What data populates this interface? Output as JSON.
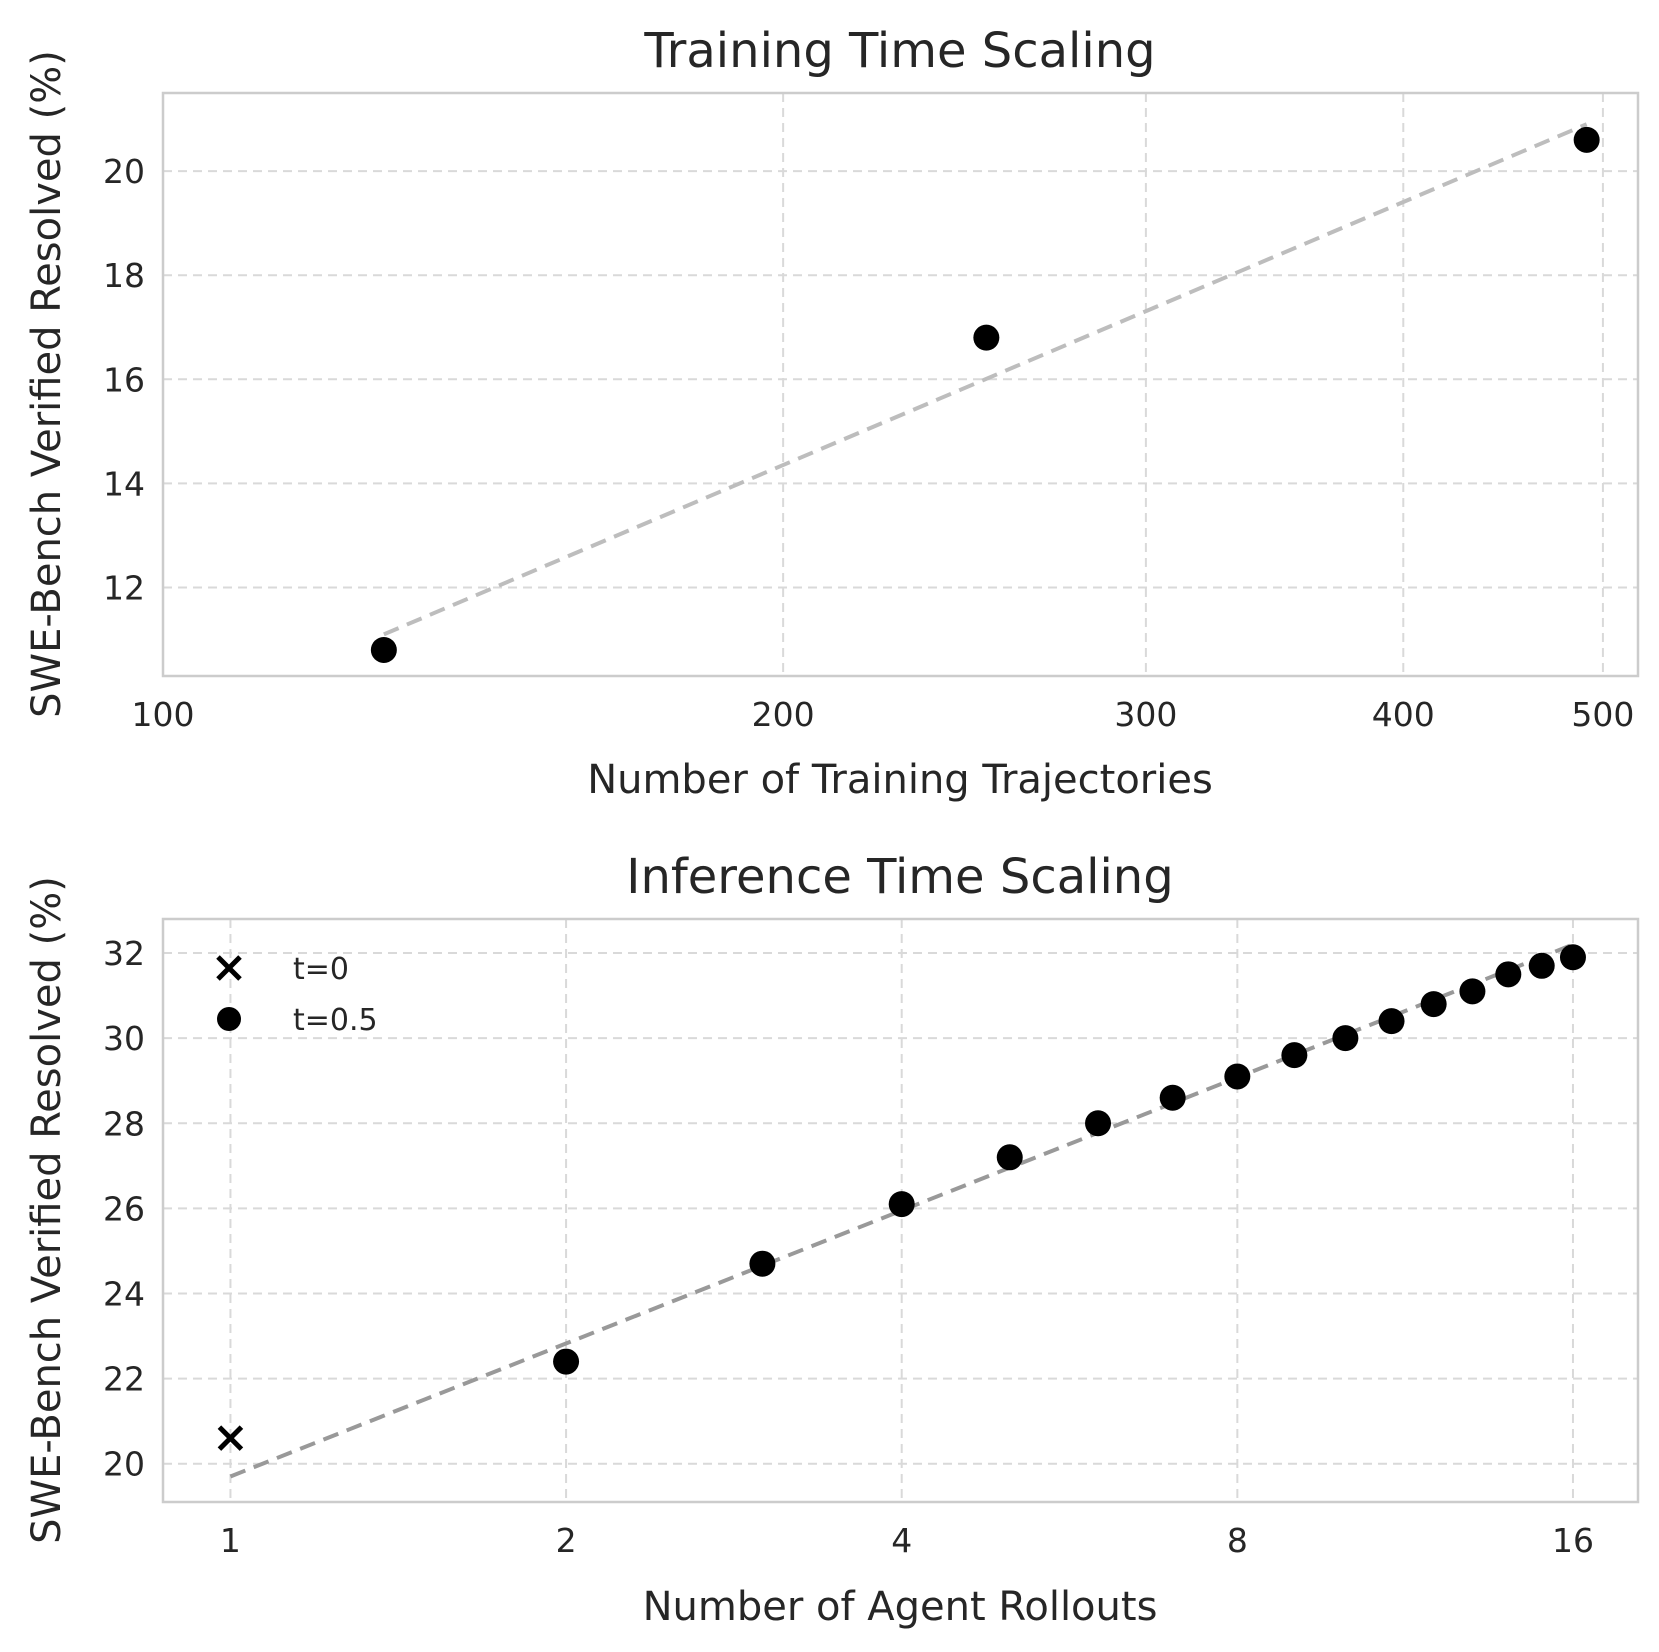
{
  "chart_data": [
    {
      "type": "scatter",
      "title": "Training Time Scaling",
      "xlabel": "Number of Training Trajectories",
      "ylabel": "SWE-Bench Verified Resolved (%)",
      "xscale": "log",
      "xlim": [
        100,
        520
      ],
      "ylim": [
        10.3,
        21.5
      ],
      "xticks": [
        100,
        200,
        300,
        400,
        500
      ],
      "xtick_labels": [
        "100",
        "200",
        "300",
        "400",
        "500"
      ],
      "yticks": [
        12,
        14,
        16,
        18,
        20
      ],
      "ytick_labels": [
        "12",
        "14",
        "16",
        "18",
        "20"
      ],
      "grid": true,
      "series": [
        {
          "marker": "circle",
          "color": "#000000",
          "x": [
            128,
            251,
            491
          ],
          "y": [
            10.8,
            16.8,
            20.6
          ]
        }
      ],
      "trendline": {
        "style": "dashed",
        "color": "#bdbdbd",
        "x": [
          128,
          491
        ],
        "y": [
          11.1,
          20.9
        ]
      }
    },
    {
      "type": "scatter",
      "title": "Inference Time Scaling",
      "xlabel": "Number of Agent Rollouts",
      "ylabel": "SWE-Bench Verified Resolved (%)",
      "xscale": "log2",
      "xlim": [
        0.87,
        18.3
      ],
      "ylim": [
        19.1,
        32.8
      ],
      "xticks": [
        1,
        2,
        4,
        8,
        16
      ],
      "xtick_labels": [
        "1",
        "2",
        "4",
        "8",
        "16"
      ],
      "yticks": [
        20,
        22,
        24,
        26,
        28,
        30,
        32
      ],
      "ytick_labels": [
        "20",
        "22",
        "24",
        "26",
        "28",
        "30",
        "32"
      ],
      "grid": true,
      "legend": {
        "position": "top-left"
      },
      "series": [
        {
          "name": "t=0",
          "marker": "x",
          "color": "#000000",
          "x": [
            1
          ],
          "y": [
            20.6
          ]
        },
        {
          "name": "t=0.5",
          "marker": "circle",
          "color": "#000000",
          "x": [
            2,
            3,
            4,
            5,
            6,
            7,
            8,
            9,
            10,
            11,
            12,
            13,
            14,
            15,
            16
          ],
          "y": [
            22.4,
            24.7,
            26.1,
            27.2,
            28.0,
            28.6,
            29.1,
            29.6,
            30.0,
            30.4,
            30.8,
            31.1,
            31.5,
            31.7,
            31.9
          ]
        }
      ],
      "trendline": {
        "style": "dashed",
        "color": "#999999",
        "x": [
          1,
          16
        ],
        "y": [
          19.7,
          32.2
        ]
      }
    }
  ]
}
